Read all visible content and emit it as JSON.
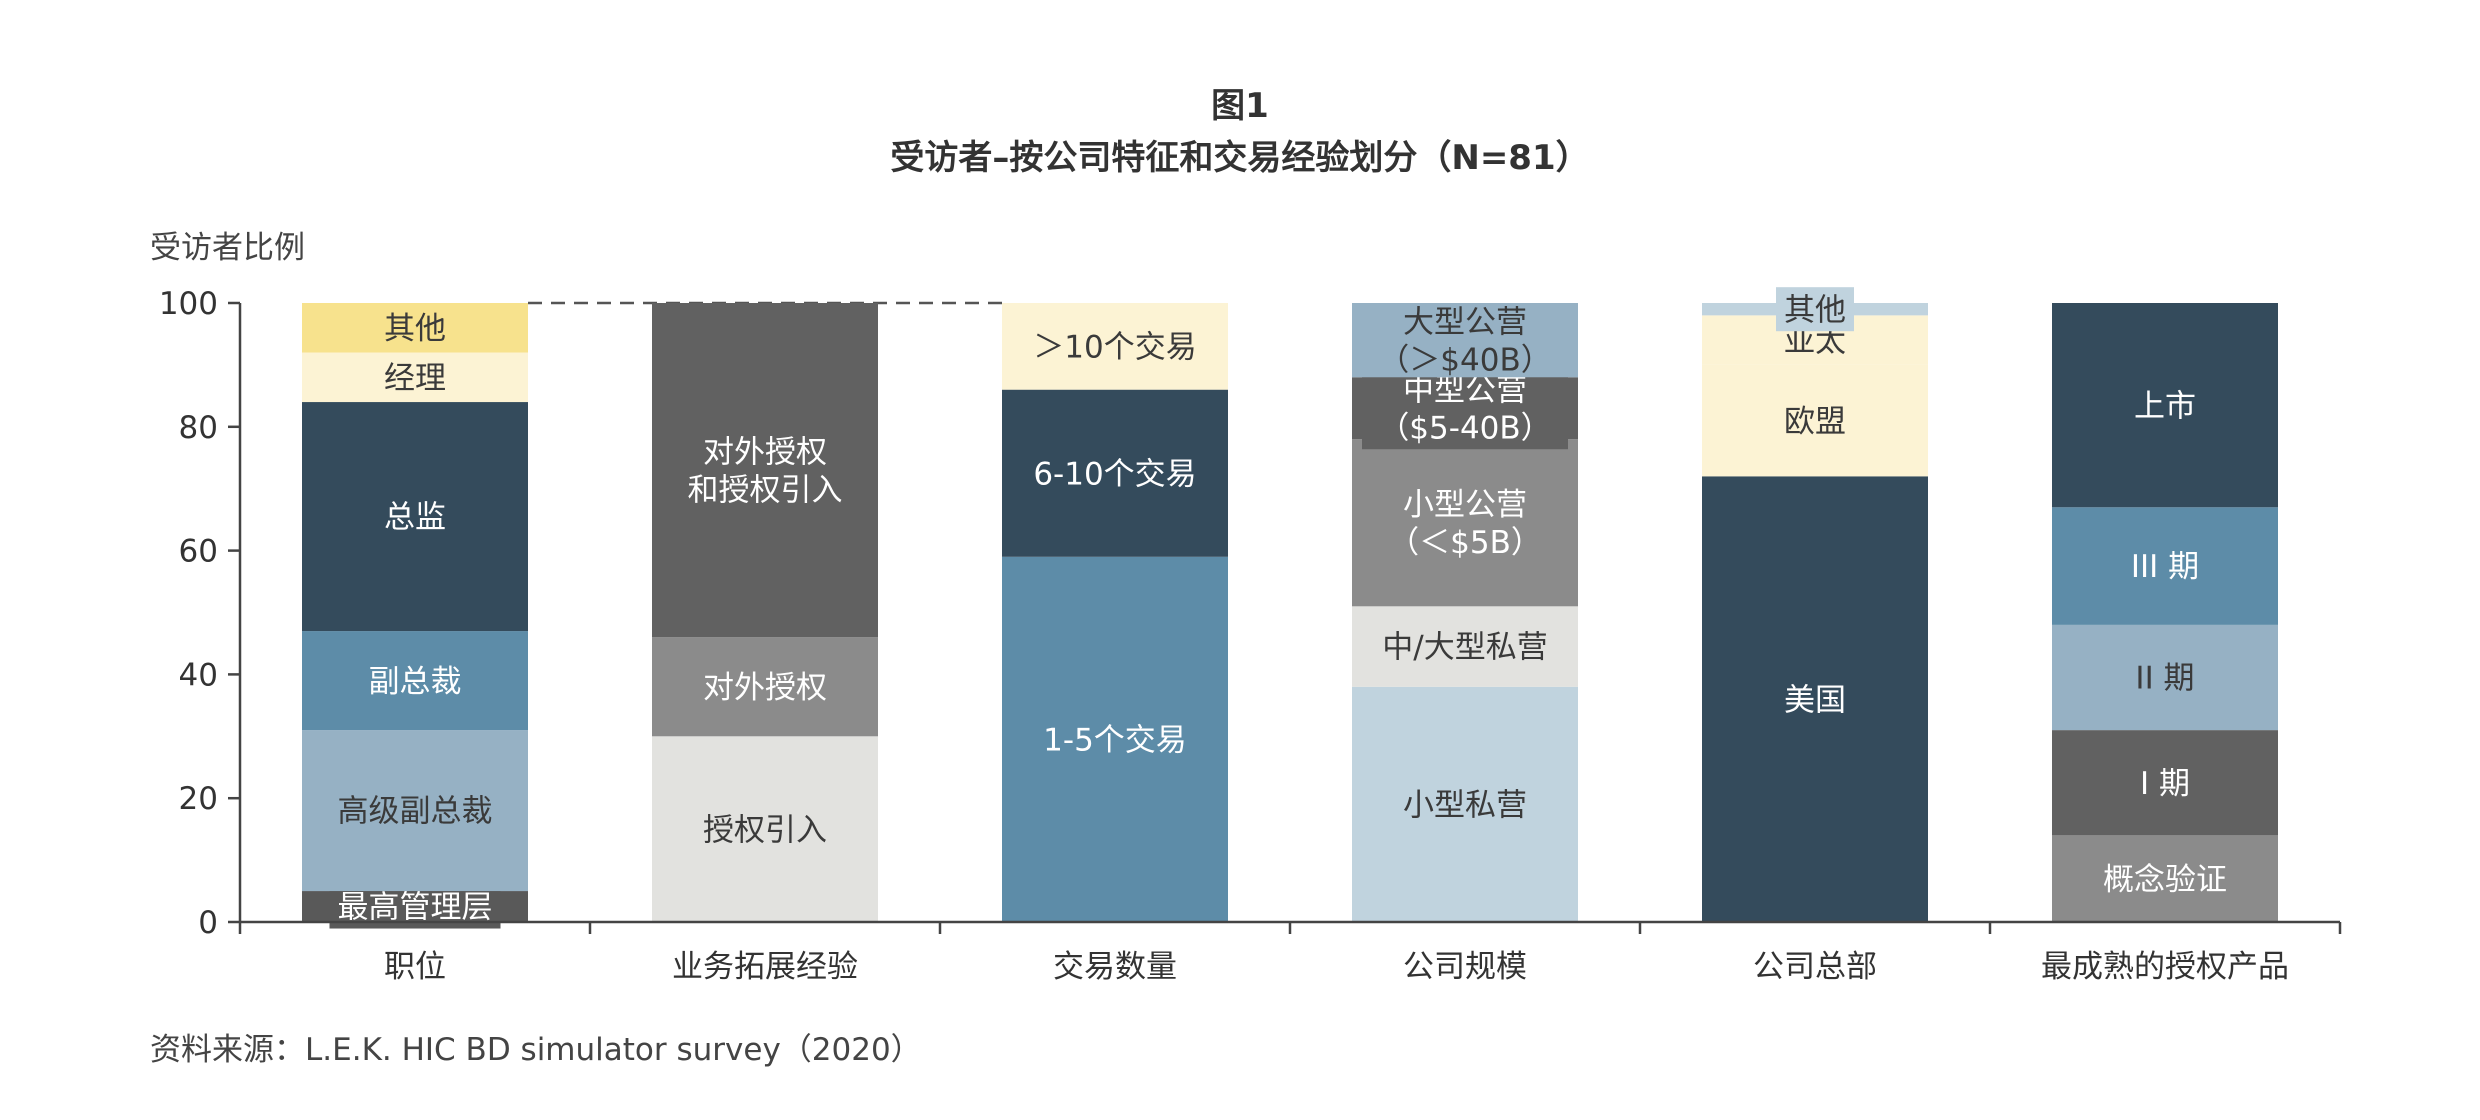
{
  "figure_label": "图1",
  "title": "受访者–按公司特征和交易经验划分（N=81）",
  "y_axis_label": "受访者比例",
  "source": "资料来源：L.E.K. HIC BD simulator survey（2020）",
  "chart_data": {
    "type": "bar",
    "stacked": true,
    "ylim": [
      0,
      100
    ],
    "yticks": [
      0,
      20,
      40,
      60,
      80,
      100
    ],
    "grid": false,
    "dashed_reference_line": 100,
    "categories": [
      "职位",
      "业务拓展经验",
      "交易数量",
      "公司规模",
      "公司总部",
      "最成熟的授权产品"
    ],
    "bars": [
      {
        "category": "职位",
        "segments": [
          {
            "label": "最高管理层",
            "value": 5,
            "color": "#595959",
            "text_color": "#ffffff",
            "label_box": true
          },
          {
            "label": "高级副总裁",
            "value": 26,
            "color": "#96b1c4",
            "text_color": "#3a3a3a"
          },
          {
            "label": "副总裁",
            "value": 16,
            "color": "#5d8ca8",
            "text_color": "#ffffff"
          },
          {
            "label": "总监",
            "value": 37,
            "color": "#344b5c",
            "text_color": "#ffffff"
          },
          {
            "label": "经理",
            "value": 8,
            "color": "#fcf3d4",
            "text_color": "#3a3a3a"
          },
          {
            "label": "其他",
            "value": 8,
            "color": "#f7e28d",
            "text_color": "#3a3a3a"
          }
        ]
      },
      {
        "category": "业务拓展经验",
        "segments": [
          {
            "label": "授权引入",
            "value": 30,
            "color": "#e2e2df",
            "text_color": "#3a3a3a"
          },
          {
            "label": "对外授权",
            "value": 16,
            "color": "#8b8b8b",
            "text_color": "#ffffff"
          },
          {
            "label": "对外授权\n和授权引入",
            "value": 54,
            "color": "#616161",
            "text_color": "#ffffff"
          }
        ]
      },
      {
        "category": "交易数量",
        "segments": [
          {
            "label": "1-5个交易",
            "value": 59,
            "color": "#5d8ca8",
            "text_color": "#ffffff"
          },
          {
            "label": "6-10个交易",
            "value": 27,
            "color": "#344b5c",
            "text_color": "#ffffff"
          },
          {
            "label": "＞10个交易",
            "value": 14,
            "color": "#fcf3d4",
            "text_color": "#3a3a3a"
          }
        ]
      },
      {
        "category": "公司规模",
        "segments": [
          {
            "label": "小型私营",
            "value": 38,
            "color": "#c0d3de",
            "text_color": "#3a3a3a"
          },
          {
            "label": "中/大型私营",
            "value": 13,
            "color": "#e2e2df",
            "text_color": "#3a3a3a"
          },
          {
            "label": "小型公营\n（＜$5B）",
            "value": 27,
            "color": "#8b8b8b",
            "text_color": "#ffffff"
          },
          {
            "label": "中型公营\n（$5-40B）",
            "value": 10,
            "color": "#616161",
            "text_color": "#ffffff",
            "label_box": true
          },
          {
            "label": "大型公营\n（＞$40B）",
            "value": 12,
            "color": "#96b1c4",
            "text_color": "#3a3a3a"
          }
        ]
      },
      {
        "category": "公司总部",
        "segments": [
          {
            "label": "美国",
            "value": 72,
            "color": "#344b5c",
            "text_color": "#ffffff"
          },
          {
            "label": "欧盟",
            "value": 18,
            "color": "#fcf3d4",
            "text_color": "#3a3a3a"
          },
          {
            "label": "亚太",
            "value": 8,
            "color": "#fcf3d4",
            "text_color": "#3a3a3a"
          },
          {
            "label": "其他",
            "value": 2,
            "color": "#c0d3de",
            "text_color": "#3a3a3a",
            "label_box": true
          }
        ]
      },
      {
        "category": "最成熟的授权产品",
        "segments": [
          {
            "label": "概念验证",
            "value": 14,
            "color": "#8b8b8b",
            "text_color": "#ffffff"
          },
          {
            "label": "I 期",
            "value": 17,
            "color": "#616161",
            "text_color": "#ffffff"
          },
          {
            "label": "II 期",
            "value": 17,
            "color": "#96b1c4",
            "text_color": "#3a3a3a"
          },
          {
            "label": "III 期",
            "value": 19,
            "color": "#5d8ca8",
            "text_color": "#ffffff"
          },
          {
            "label": "上市",
            "value": 33,
            "color": "#344b5c",
            "text_color": "#ffffff"
          }
        ]
      }
    ]
  }
}
